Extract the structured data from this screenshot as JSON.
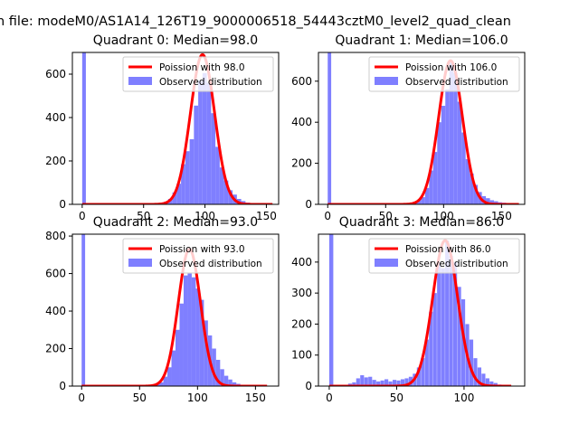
{
  "figure_title": "n file: modeM0/AS1A14_126T19_9000006518_54443cztM0_level2_quad_clean",
  "colors": {
    "poisson": "#ff0000",
    "hist": "#7f7fff",
    "axes": "#000000"
  },
  "chart_data": [
    {
      "type": "bar+line",
      "title": "Quadrant 0: Median=98.0",
      "median": 98,
      "xlim": [
        -8,
        160
      ],
      "ylim": [
        0,
        700
      ],
      "xticks": [
        0,
        50,
        100,
        150
      ],
      "yticks": [
        0,
        200,
        400,
        600
      ],
      "legend": {
        "position": "top-right",
        "line_label": "Poission with 98.0",
        "hist_label": "Observed distribution"
      },
      "bin_width": 3.5,
      "spike": {
        "x": 0,
        "value": 700
      },
      "bins": [
        {
          "x": 63,
          "value": 5
        },
        {
          "x": 66.5,
          "value": 12
        },
        {
          "x": 70,
          "value": 25
        },
        {
          "x": 73.5,
          "value": 55
        },
        {
          "x": 77,
          "value": 95
        },
        {
          "x": 80.5,
          "value": 185
        },
        {
          "x": 84,
          "value": 245
        },
        {
          "x": 87.5,
          "value": 300
        },
        {
          "x": 91,
          "value": 455
        },
        {
          "x": 94.5,
          "value": 570
        },
        {
          "x": 98,
          "value": 605
        },
        {
          "x": 101.5,
          "value": 560
        },
        {
          "x": 105,
          "value": 420
        },
        {
          "x": 108.5,
          "value": 265
        },
        {
          "x": 112,
          "value": 170
        },
        {
          "x": 115.5,
          "value": 110
        },
        {
          "x": 119,
          "value": 65
        },
        {
          "x": 122.5,
          "value": 45
        },
        {
          "x": 126,
          "value": 25
        },
        {
          "x": 129.5,
          "value": 15
        },
        {
          "x": 133,
          "value": 8
        },
        {
          "x": 136.5,
          "value": 5
        },
        {
          "x": 140,
          "value": 3
        }
      ],
      "poisson": {
        "mean": 98,
        "peak": 690,
        "x_range": [
          0,
          155
        ]
      }
    },
    {
      "type": "bar+line",
      "title": "Quadrant 1: Median=106.0",
      "median": 106,
      "xlim": [
        -8,
        170
      ],
      "ylim": [
        0,
        740
      ],
      "xticks": [
        0,
        50,
        100,
        150
      ],
      "yticks": [
        0,
        200,
        400,
        600
      ],
      "legend": {
        "position": "top-right",
        "line_label": "Poission with 106.0",
        "hist_label": "Observed distribution"
      },
      "bin_width": 3.5,
      "spike": {
        "x": 0,
        "value": 740
      },
      "bins": [
        {
          "x": 70,
          "value": 5
        },
        {
          "x": 73.5,
          "value": 12
        },
        {
          "x": 77,
          "value": 20
        },
        {
          "x": 80.5,
          "value": 35
        },
        {
          "x": 84,
          "value": 80
        },
        {
          "x": 87.5,
          "value": 165
        },
        {
          "x": 91,
          "value": 255
        },
        {
          "x": 94.5,
          "value": 400
        },
        {
          "x": 98,
          "value": 480
        },
        {
          "x": 101.5,
          "value": 560
        },
        {
          "x": 105,
          "value": 690
        },
        {
          "x": 108.5,
          "value": 640
        },
        {
          "x": 112,
          "value": 500
        },
        {
          "x": 115.5,
          "value": 350
        },
        {
          "x": 119,
          "value": 220
        },
        {
          "x": 122.5,
          "value": 150
        },
        {
          "x": 126,
          "value": 95
        },
        {
          "x": 129.5,
          "value": 60
        },
        {
          "x": 133,
          "value": 40
        },
        {
          "x": 136.5,
          "value": 30
        },
        {
          "x": 140,
          "value": 20
        },
        {
          "x": 143.5,
          "value": 15
        },
        {
          "x": 147,
          "value": 10
        },
        {
          "x": 150.5,
          "value": 8
        },
        {
          "x": 154,
          "value": 5
        }
      ],
      "poisson": {
        "mean": 106,
        "peak": 700,
        "x_range": [
          0,
          165
        ]
      }
    },
    {
      "type": "bar+line",
      "title": "Quadrant 2: Median=93.0",
      "median": 93,
      "xlim": [
        -8,
        170
      ],
      "ylim": [
        0,
        810
      ],
      "xticks": [
        0,
        50,
        100,
        150
      ],
      "yticks": [
        0,
        200,
        400,
        600,
        800
      ],
      "legend": {
        "position": "top-right",
        "line_label": "Poission with 93.0",
        "hist_label": "Observed distribution"
      },
      "bin_width": 3.5,
      "spike": {
        "x": 0,
        "value": 810
      },
      "bins": [
        {
          "x": 60,
          "value": 5
        },
        {
          "x": 63.5,
          "value": 10
        },
        {
          "x": 67,
          "value": 20
        },
        {
          "x": 70.5,
          "value": 50
        },
        {
          "x": 74,
          "value": 100
        },
        {
          "x": 77.5,
          "value": 190
        },
        {
          "x": 81,
          "value": 300
        },
        {
          "x": 84.5,
          "value": 440
        },
        {
          "x": 88,
          "value": 590
        },
        {
          "x": 91.5,
          "value": 600
        },
        {
          "x": 95,
          "value": 580
        },
        {
          "x": 98.5,
          "value": 520
        },
        {
          "x": 102,
          "value": 460
        },
        {
          "x": 105.5,
          "value": 350
        },
        {
          "x": 109,
          "value": 270
        },
        {
          "x": 112.5,
          "value": 200
        },
        {
          "x": 116,
          "value": 140
        },
        {
          "x": 119.5,
          "value": 90
        },
        {
          "x": 123,
          "value": 55
        },
        {
          "x": 126.5,
          "value": 35
        },
        {
          "x": 130,
          "value": 20
        },
        {
          "x": 133.5,
          "value": 12
        },
        {
          "x": 137,
          "value": 6
        }
      ],
      "poisson": {
        "mean": 93,
        "peak": 730,
        "x_range": [
          0,
          160
        ]
      }
    },
    {
      "type": "bar+line",
      "title": "Quadrant 3: Median=86.0",
      "median": 86,
      "xlim": [
        -8,
        145
      ],
      "ylim": [
        0,
        490
      ],
      "xticks": [
        0,
        50,
        100
      ],
      "yticks": [
        0,
        100,
        200,
        300,
        400
      ],
      "legend": {
        "position": "top-right",
        "line_label": "Poission with 86.0",
        "hist_label": "Observed distribution"
      },
      "bin_width": 2.8,
      "spike": {
        "x": 0,
        "value": 490
      },
      "bins": [
        {
          "x": 14,
          "value": 8
        },
        {
          "x": 17,
          "value": 12
        },
        {
          "x": 20,
          "value": 25
        },
        {
          "x": 23,
          "value": 35
        },
        {
          "x": 26,
          "value": 28
        },
        {
          "x": 29,
          "value": 30
        },
        {
          "x": 32,
          "value": 20
        },
        {
          "x": 35,
          "value": 15
        },
        {
          "x": 38,
          "value": 18
        },
        {
          "x": 41,
          "value": 22
        },
        {
          "x": 44,
          "value": 15
        },
        {
          "x": 47,
          "value": 20
        },
        {
          "x": 50,
          "value": 18
        },
        {
          "x": 53,
          "value": 22
        },
        {
          "x": 56,
          "value": 25
        },
        {
          "x": 59,
          "value": 30
        },
        {
          "x": 62,
          "value": 40
        },
        {
          "x": 65,
          "value": 60
        },
        {
          "x": 68,
          "value": 90
        },
        {
          "x": 71,
          "value": 150
        },
        {
          "x": 74,
          "value": 240
        },
        {
          "x": 77,
          "value": 300
        },
        {
          "x": 80,
          "value": 400
        },
        {
          "x": 83,
          "value": 380
        },
        {
          "x": 86,
          "value": 470
        },
        {
          "x": 89,
          "value": 420
        },
        {
          "x": 92,
          "value": 400
        },
        {
          "x": 95,
          "value": 320
        },
        {
          "x": 98,
          "value": 280
        },
        {
          "x": 101,
          "value": 200
        },
        {
          "x": 104,
          "value": 150
        },
        {
          "x": 107,
          "value": 90
        },
        {
          "x": 110,
          "value": 60
        },
        {
          "x": 113,
          "value": 40
        },
        {
          "x": 116,
          "value": 25
        },
        {
          "x": 119,
          "value": 15
        },
        {
          "x": 122,
          "value": 10
        },
        {
          "x": 125,
          "value": 5
        }
      ],
      "poisson": {
        "mean": 86,
        "peak": 470,
        "x_range": [
          0,
          135
        ]
      }
    }
  ]
}
